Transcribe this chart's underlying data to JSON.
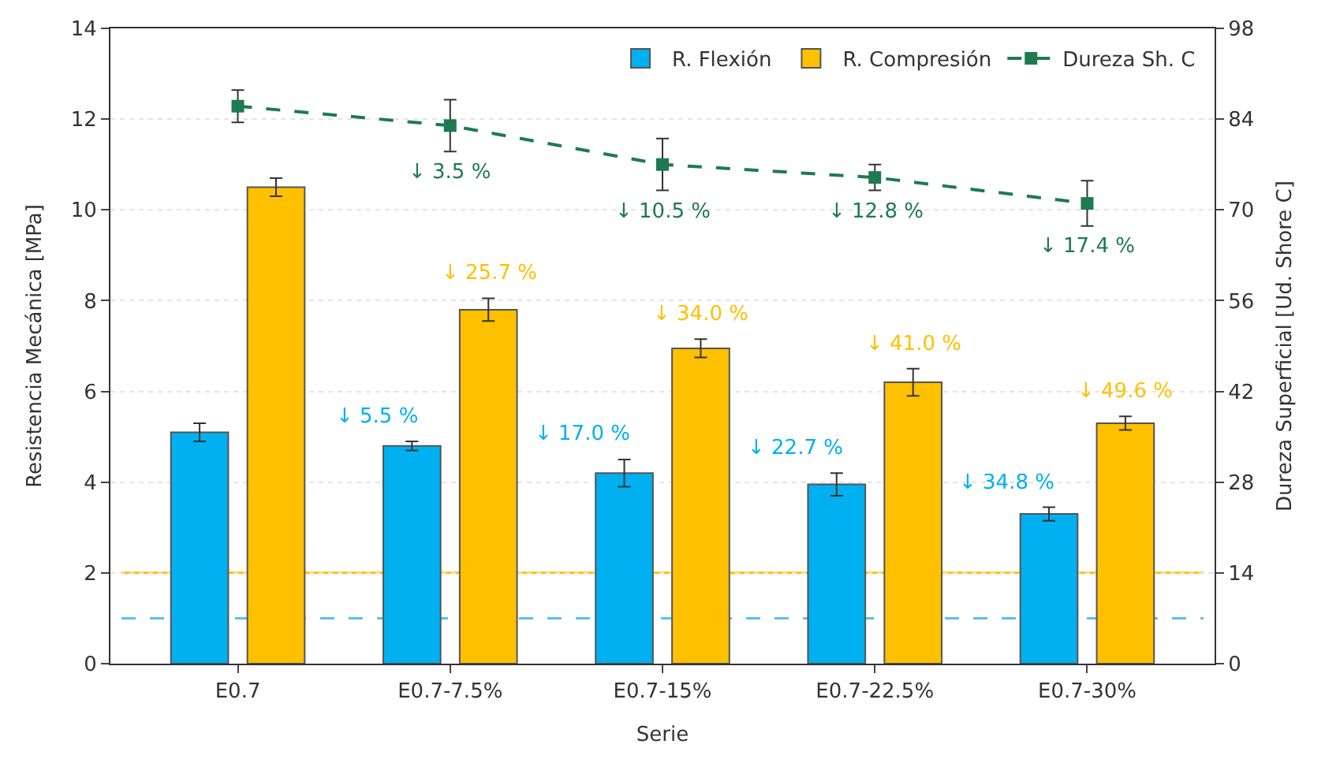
{
  "chart_data": {
    "type": "bar",
    "xlabel": "Serie",
    "ylabel": "Resistencia Mecánica [MPa]",
    "y2label": "Dureza Superficial [Ud. Shore C]",
    "categories": [
      "E0.7",
      "E0.7-7.5%",
      "E0.7-15%",
      "E0.7-22.5%",
      "E0.7-30%"
    ],
    "series": [
      {
        "name": "R. Flexión",
        "color": "#00b0f0",
        "values": [
          5.1,
          4.8,
          4.2,
          3.95,
          3.3
        ],
        "errors": [
          0.2,
          0.1,
          0.3,
          0.25,
          0.15
        ]
      },
      {
        "name": "R. Compresión",
        "color": "#ffc000",
        "values": [
          10.5,
          7.8,
          6.95,
          6.2,
          5.3
        ],
        "errors": [
          0.2,
          0.25,
          0.2,
          0.3,
          0.15
        ]
      },
      {
        "name": "Dureza Sh. C",
        "type": "line",
        "axis": "y2",
        "color": "#1e7a50",
        "marker": "square",
        "line_style": "dashed",
        "values": [
          86,
          83,
          77,
          75,
          71
        ],
        "errors": [
          2.5,
          4,
          4,
          2,
          3.5
        ]
      }
    ],
    "annotations": [
      "↓ 5.5 %",
      "↓ 17.0 %",
      "↓ 22.7 %",
      "↓ 34.8 %",
      "↓ 25.7 %",
      "↓ 34.0 %",
      "↓ 41.0 %",
      "↓ 49.6 %",
      "↓ 3.5 %",
      "↓ 10.5 %",
      "↓ 12.8 %",
      "↓ 17.4 %"
    ],
    "ylim": [
      0,
      14
    ],
    "yticks": [
      0,
      2,
      4,
      6,
      8,
      10,
      12,
      14
    ],
    "y2lim": [
      0,
      98
    ],
    "y2ticks": [
      0,
      14,
      28,
      42,
      56,
      70,
      84,
      98
    ],
    "ref_lines": [
      {
        "axis": "y",
        "value": 2,
        "color": "#ffc000",
        "line_style": "solid"
      },
      {
        "axis": "y",
        "value": 1,
        "color": "#5bc0eb",
        "line_style": "dashed"
      }
    ],
    "grid": "y",
    "legend": "top right"
  }
}
